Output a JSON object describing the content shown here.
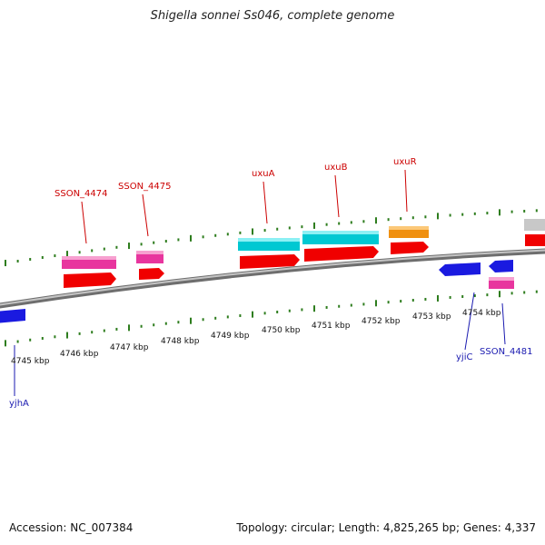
{
  "map": {
    "title": "Shigella sonnei Ss046, complete genome",
    "accession": "Accession: NC_007384",
    "stats": "Topology: circular; Length: 4,825,265 bp; Genes: 4,337"
  },
  "colors": {
    "backbone": "#8a8a8a",
    "tick": "#2e7d1e",
    "cds": "#f00000",
    "gene_red_label": "#cc0000",
    "gene_blue_label": "#1a1ab0",
    "cyan": "#00c8d2",
    "magenta": "#e8359e",
    "orange": "#f09010",
    "blue": "#1a1ae0",
    "gray": "#c8c8c8"
  },
  "scale": {
    "ticks": [
      {
        "label": "4745 kbp"
      },
      {
        "label": "4746 kbp"
      },
      {
        "label": "4747 kbp"
      },
      {
        "label": "4748 kbp"
      },
      {
        "label": "4749 kbp"
      },
      {
        "label": "4750 kbp"
      },
      {
        "label": "4751 kbp"
      },
      {
        "label": "4752 kbp"
      },
      {
        "label": "4753 kbp"
      },
      {
        "label": "4754 kbp"
      }
    ]
  },
  "genes_top": [
    {
      "name": "SSON_4474"
    },
    {
      "name": "SSON_4475"
    },
    {
      "name": "uxuA"
    },
    {
      "name": "uxuB"
    },
    {
      "name": "uxuR"
    }
  ],
  "genes_bottom": [
    {
      "name": "yjhA"
    },
    {
      "name": "yjiC"
    },
    {
      "name": "SSON_4481"
    }
  ]
}
